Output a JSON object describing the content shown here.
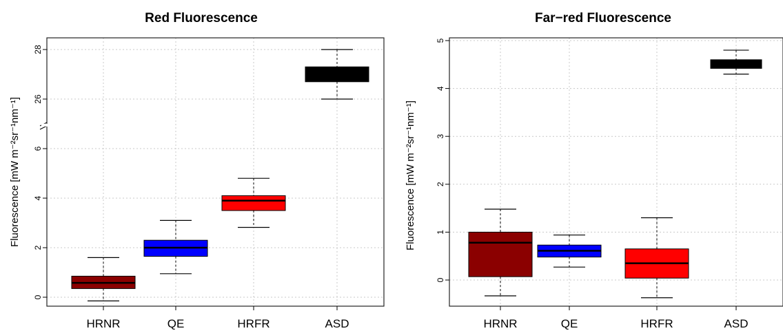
{
  "chart_data": [
    {
      "type": "box",
      "title": "Red Fluorescence",
      "ylabel": "Fluorescence [mW m⁻²sr⁻¹nm⁻¹]",
      "categories": [
        "HRNR",
        "QE",
        "HRFR",
        "ASD"
      ],
      "axis_break": {
        "lower": [
          0,
          6.5
        ],
        "upper": [
          25.6,
          28.3
        ]
      },
      "yticks": [
        0,
        2,
        4,
        6,
        26,
        28
      ],
      "grid": true,
      "boxes": [
        {
          "category": "HRNR",
          "min": -0.15,
          "q1": 0.35,
          "median": 0.58,
          "q3": 0.85,
          "max": 1.6,
          "color": "#8b0000"
        },
        {
          "category": "QE",
          "min": 0.95,
          "q1": 1.65,
          "median": 2.0,
          "q3": 2.3,
          "max": 3.1,
          "color": "#0000ff"
        },
        {
          "category": "HRFR",
          "min": 2.82,
          "q1": 3.5,
          "median": 3.9,
          "q3": 4.1,
          "max": 4.8,
          "color": "#ff0000"
        },
        {
          "category": "ASD",
          "min": 26.0,
          "q1": 26.7,
          "median": 26.95,
          "q3": 27.3,
          "max": 28.0,
          "color": "#000000"
        }
      ]
    },
    {
      "type": "box",
      "title": "Far−red Fluorescence",
      "ylabel": "Fluorescence [mW m⁻²sr⁻¹nm⁻¹]",
      "categories": [
        "HRNR",
        "QE",
        "HRFR",
        "ASD"
      ],
      "ylim": [
        -0.55,
        5.05
      ],
      "yticks": [
        0,
        1,
        2,
        3,
        4,
        5
      ],
      "grid": true,
      "boxes": [
        {
          "category": "HRNR",
          "min": -0.33,
          "q1": 0.07,
          "median": 0.78,
          "q3": 1.0,
          "max": 1.48,
          "color": "#8b0000"
        },
        {
          "category": "QE",
          "min": 0.27,
          "q1": 0.48,
          "median": 0.61,
          "q3": 0.73,
          "max": 0.94,
          "color": "#0000ff"
        },
        {
          "category": "HRFR",
          "min": -0.37,
          "q1": 0.04,
          "median": 0.35,
          "q3": 0.65,
          "max": 1.3,
          "color": "#ff0000"
        },
        {
          "category": "ASD",
          "min": 4.3,
          "q1": 4.42,
          "median": 4.5,
          "q3": 4.6,
          "max": 4.8,
          "color": "#000000"
        }
      ]
    }
  ]
}
